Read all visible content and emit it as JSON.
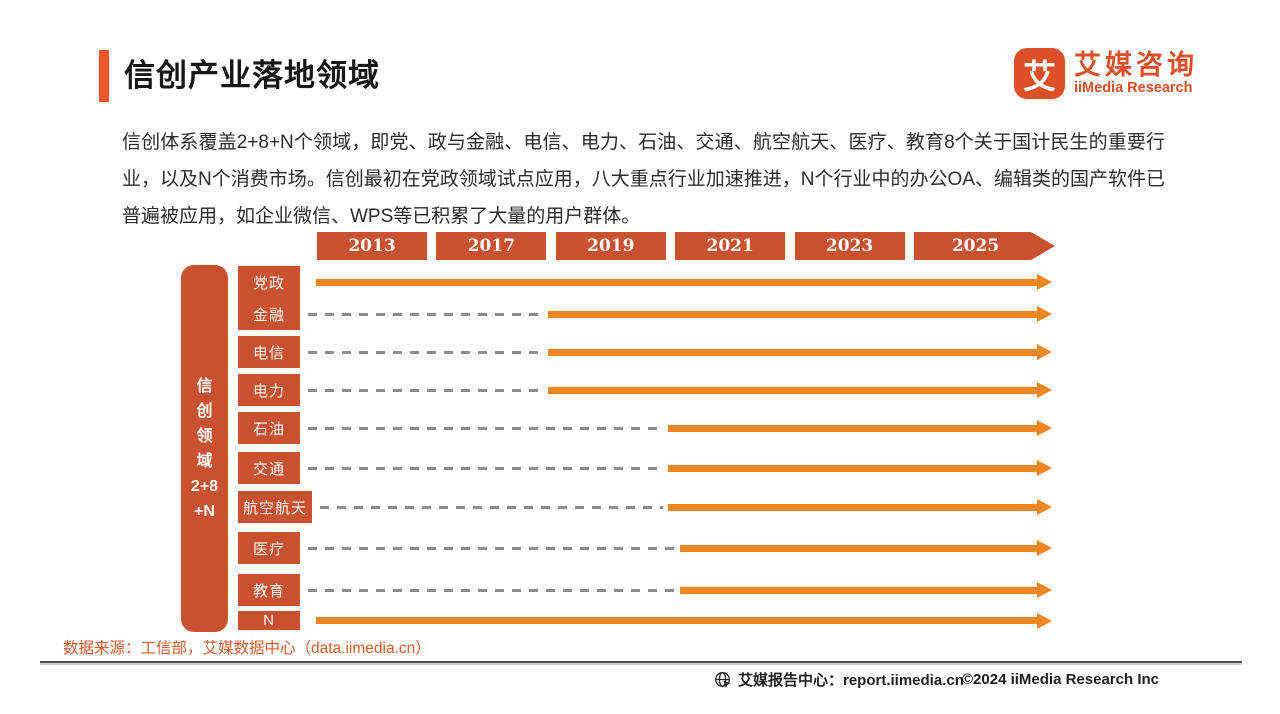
{
  "header": {
    "title": "信创产业落地领域"
  },
  "logo": {
    "mark": "艾",
    "name_cn": "艾媒咨询",
    "name_en": "iiMedia Research"
  },
  "intro": {
    "text": "信创体系覆盖2+8+N个领域，即党、政与金融、电信、电力、石油、交通、航空航天、医疗、教育8个关于国计民生的重要行业，以及N个消费市场。信创最初在党政领域试点应用，八大重点行业加速推进，N个行业中的办公OA、编辑类的国产软件已普遍被应用，如企业微信、WPS等已积累了大量的用户群体。"
  },
  "chart_data": {
    "type": "timeline",
    "years": [
      "2013",
      "2017",
      "2019",
      "2021",
      "2023",
      "2025"
    ],
    "sidebar_label_lines": [
      "信",
      "创",
      "领",
      "域",
      "2+8",
      "+N"
    ],
    "rows": [
      {
        "label": "党政",
        "start_year": "2013",
        "dashed_prefix": false,
        "wide": false
      },
      {
        "label": "金融",
        "start_year": "2019",
        "dashed_prefix": true,
        "wide": false
      },
      {
        "label": "电信",
        "start_year": "2019",
        "dashed_prefix": true,
        "wide": false
      },
      {
        "label": "电力",
        "start_year": "2019",
        "dashed_prefix": true,
        "wide": false
      },
      {
        "label": "石油",
        "start_year": "2021",
        "dashed_prefix": true,
        "wide": false
      },
      {
        "label": "交通",
        "start_year": "2021",
        "dashed_prefix": true,
        "wide": false
      },
      {
        "label": "航空航天",
        "start_year": "2021",
        "dashed_prefix": true,
        "wide": true
      },
      {
        "label": "医疗",
        "start_year": "2021",
        "dashed_prefix": true,
        "wide": false
      },
      {
        "label": "教育",
        "start_year": "2021",
        "dashed_prefix": true,
        "wide": false
      },
      {
        "label": "N",
        "start_year": "2013",
        "dashed_prefix": false,
        "wide": false
      }
    ],
    "layout": {
      "year_row_top": 232,
      "year_box_h": 28,
      "years_left": 317,
      "year_box_w": 110,
      "year_pitch": 119.4,
      "last_year_box_w": 141,
      "label_left": 238,
      "label_w": 62,
      "label_w_wide": 74,
      "row_tops": [
        266,
        298,
        336,
        374,
        412,
        452,
        491,
        532,
        574,
        611
      ],
      "row_box_heights": [
        32,
        32,
        32,
        32,
        32,
        32,
        32,
        32,
        32,
        19
      ],
      "solid_starts": [
        316,
        548,
        548,
        548,
        668,
        668,
        668,
        680,
        680,
        316
      ],
      "dash_start": 308,
      "dash_start_wide": 320,
      "arrow_end": 1052,
      "line_thickness": 7
    },
    "colors": {
      "box": "#C9512F",
      "arrow": "#F0861F",
      "dash": "#8B8B8B"
    }
  },
  "source": {
    "text": "数据来源：工信部，艾媒数据中心（data.iimedia.cn）"
  },
  "footer": {
    "report_center": "艾媒报告中心：report.iimedia.cn",
    "copyright": "©2024  iiMedia Research  Inc"
  }
}
